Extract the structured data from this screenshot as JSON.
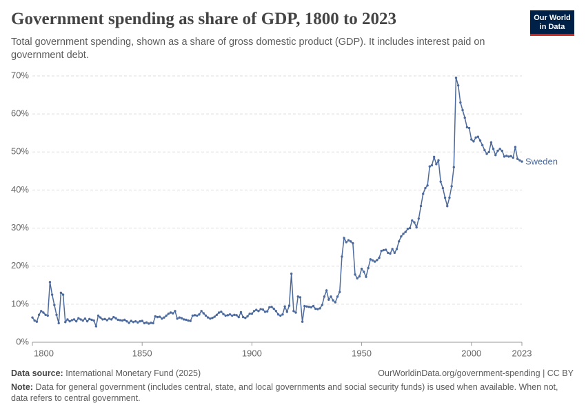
{
  "header": {
    "title": "Government spending as share of GDP, 1800 to 2023",
    "subtitle": "Total government spending, shown as a share of gross domestic product (GDP). It includes interest paid on government debt.",
    "logo": [
      "Our World",
      "in Data"
    ]
  },
  "chart_data": {
    "type": "line",
    "x": [
      1800,
      1801,
      1802,
      1803,
      1804,
      1805,
      1806,
      1807,
      1808,
      1809,
      1810,
      1811,
      1812,
      1813,
      1814,
      1815,
      1816,
      1817,
      1818,
      1819,
      1820,
      1821,
      1822,
      1823,
      1824,
      1825,
      1826,
      1827,
      1828,
      1829,
      1830,
      1831,
      1832,
      1833,
      1834,
      1835,
      1836,
      1837,
      1838,
      1839,
      1840,
      1841,
      1842,
      1843,
      1844,
      1845,
      1846,
      1847,
      1848,
      1849,
      1850,
      1851,
      1852,
      1853,
      1854,
      1855,
      1856,
      1857,
      1858,
      1859,
      1860,
      1861,
      1862,
      1863,
      1864,
      1865,
      1866,
      1867,
      1868,
      1869,
      1870,
      1871,
      1872,
      1873,
      1874,
      1875,
      1876,
      1877,
      1878,
      1879,
      1880,
      1881,
      1882,
      1883,
      1884,
      1885,
      1886,
      1887,
      1888,
      1889,
      1890,
      1891,
      1892,
      1893,
      1894,
      1895,
      1896,
      1897,
      1898,
      1899,
      1900,
      1901,
      1902,
      1903,
      1904,
      1905,
      1906,
      1907,
      1908,
      1909,
      1910,
      1911,
      1912,
      1913,
      1914,
      1915,
      1916,
      1917,
      1918,
      1919,
      1920,
      1921,
      1922,
      1923,
      1924,
      1925,
      1926,
      1927,
      1928,
      1929,
      1930,
      1931,
      1932,
      1933,
      1934,
      1935,
      1936,
      1937,
      1938,
      1939,
      1940,
      1941,
      1942,
      1943,
      1944,
      1945,
      1946,
      1947,
      1948,
      1949,
      1950,
      1951,
      1952,
      1953,
      1954,
      1955,
      1956,
      1957,
      1958,
      1959,
      1960,
      1961,
      1962,
      1963,
      1964,
      1965,
      1966,
      1967,
      1968,
      1969,
      1970,
      1971,
      1972,
      1973,
      1974,
      1975,
      1976,
      1977,
      1978,
      1979,
      1980,
      1981,
      1982,
      1983,
      1984,
      1985,
      1986,
      1987,
      1988,
      1989,
      1990,
      1991,
      1992,
      1993,
      1994,
      1995,
      1996,
      1997,
      1998,
      1999,
      2000,
      2001,
      2002,
      2003,
      2004,
      2005,
      2006,
      2007,
      2008,
      2009,
      2010,
      2011,
      2012,
      2013,
      2014,
      2015,
      2016,
      2017,
      2018,
      2019,
      2020,
      2021,
      2022,
      2023
    ],
    "series": [
      {
        "name": "Sweden",
        "color": "#4c6a9c",
        "values": [
          6.5,
          5.7,
          5.4,
          7.2,
          8.2,
          7.8,
          7.2,
          7.0,
          15.8,
          12.5,
          9.8,
          7.2,
          5.0,
          13.0,
          12.5,
          5.3,
          6.0,
          5.5,
          5.8,
          6.0,
          5.5,
          6.3,
          6.0,
          5.7,
          6.2,
          5.5,
          6.1,
          5.9,
          5.7,
          4.2,
          7.0,
          6.5,
          6.0,
          6.1,
          5.8,
          6.2,
          6.0,
          6.6,
          6.3,
          5.9,
          5.8,
          5.7,
          5.9,
          5.5,
          5.1,
          5.6,
          5.3,
          5.5,
          5.2,
          5.5,
          5.6,
          5.0,
          5.2,
          4.9,
          5.1,
          5.0,
          6.8,
          6.6,
          6.7,
          6.2,
          6.5,
          7.0,
          7.5,
          7.8,
          7.6,
          8.2,
          6.2,
          6.5,
          6.3,
          6.0,
          5.9,
          5.7,
          5.6,
          7.0,
          7.1,
          7.0,
          7.3,
          8.2,
          7.6,
          7.0,
          6.5,
          6.2,
          6.4,
          6.7,
          7.2,
          7.8,
          8.0,
          7.4,
          7.0,
          7.1,
          7.3,
          7.0,
          7.2,
          7.1,
          6.6,
          7.9,
          6.6,
          6.4,
          6.8,
          7.5,
          7.5,
          8.2,
          8.5,
          8.2,
          8.7,
          8.6,
          8.0,
          8.1,
          9.2,
          9.3,
          8.8,
          8.2,
          7.3,
          7.0,
          7.3,
          9.4,
          8.0,
          9.6,
          18.0,
          8.2,
          7.8,
          12.0,
          11.8,
          5.4,
          9.5,
          9.4,
          9.3,
          9.2,
          9.5,
          8.8,
          8.7,
          8.9,
          9.8,
          12.0,
          13.6,
          11.2,
          12.0,
          11.0,
          10.5,
          12.0,
          13.2,
          22.5,
          27.4,
          26.3,
          26.8,
          26.5,
          26.0,
          17.8,
          16.8,
          17.3,
          19.3,
          18.5,
          17.2,
          19.5,
          21.8,
          21.5,
          21.2,
          21.6,
          22.2,
          24.0,
          24.2,
          24.3,
          23.5,
          23.3,
          24.5,
          23.5,
          24.5,
          26.5,
          27.8,
          28.5,
          29.0,
          29.8,
          30.0,
          32.0,
          31.5,
          30.2,
          32.5,
          35.8,
          39.0,
          40.5,
          41.2,
          46.2,
          46.5,
          48.7,
          46.8,
          47.8,
          42.2,
          40.5,
          38.0,
          35.8,
          38.0,
          41.0,
          46.0,
          69.5,
          67.5,
          63.0,
          61.0,
          59.0,
          56.5,
          56.3,
          53.3,
          52.8,
          53.8,
          54.0,
          53.0,
          51.8,
          50.5,
          49.5,
          50.0,
          52.5,
          50.8,
          49.2,
          50.3,
          50.8,
          50.3,
          48.8,
          49.0,
          48.8,
          48.9,
          48.5,
          51.3,
          48.2,
          47.8,
          47.5
        ]
      }
    ],
    "xlim": [
      1800,
      2023
    ],
    "xticks": [
      1800,
      1850,
      1900,
      1950,
      2000,
      2023
    ],
    "ylim": [
      0,
      70
    ],
    "yticks": [
      {
        "value": 0,
        "label": "0%"
      },
      {
        "value": 10,
        "label": "10%"
      },
      {
        "value": 20,
        "label": "20%"
      },
      {
        "value": 30,
        "label": "30%"
      },
      {
        "value": 40,
        "label": "40%"
      },
      {
        "value": 50,
        "label": "50%"
      },
      {
        "value": 60,
        "label": "60%"
      },
      {
        "value": 70,
        "label": "70%"
      }
    ],
    "grid": true
  },
  "footer": {
    "source_label": "Data source:",
    "source": "International Monetary Fund (2025)",
    "url": "OurWorldinData.org/government-spending | CC BY",
    "note_label": "Note:",
    "note": "Data for general government (includes central, state, and local governments and social security funds) is used when available. When not, data refers to central government."
  }
}
